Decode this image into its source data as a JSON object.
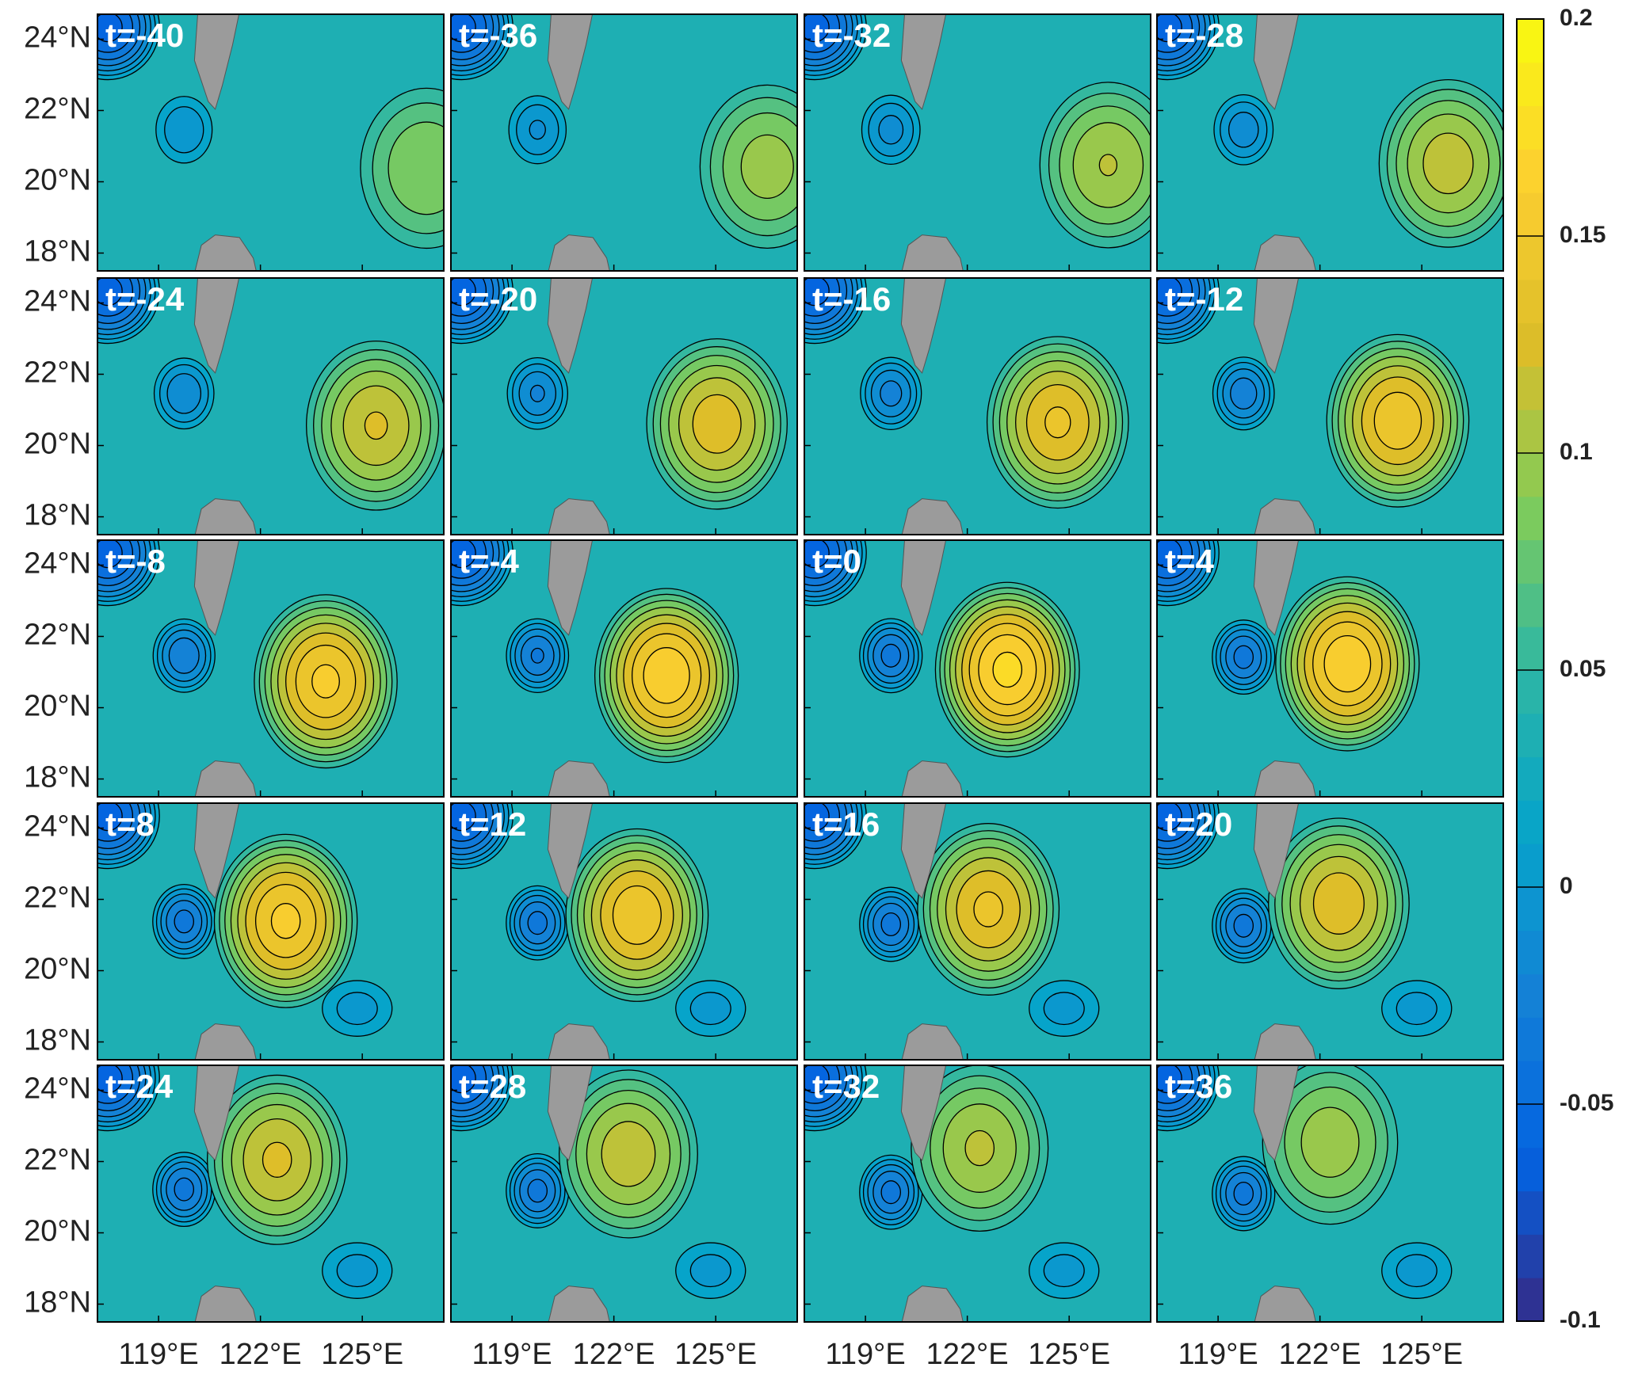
{
  "chart_data": {
    "type": "contour-map",
    "panels": [
      "t=-40",
      "t=-36",
      "t=-32",
      "t=-28",
      "t=-24",
      "t=-20",
      "t=-16",
      "t=-12",
      "t=-8",
      "t=-4",
      "t=0",
      "t=4",
      "t=8",
      "t=12",
      "t=16",
      "t=20",
      "t=24",
      "t=28",
      "t=32",
      "t=36"
    ],
    "xlim": [
      117.2,
      127.4
    ],
    "xticks": [
      {
        "value": 119,
        "label": "119°E"
      },
      {
        "value": 122,
        "label": "122°E"
      },
      {
        "value": 125,
        "label": "125°E"
      }
    ],
    "ylim": [
      17.5,
      24.7
    ],
    "yticks": [
      {
        "value": 18,
        "label": "18°N"
      },
      {
        "value": 20,
        "label": "20°N"
      },
      {
        "value": 22,
        "label": "22°N"
      },
      {
        "value": 24,
        "label": "24°N"
      }
    ],
    "colorbar": {
      "lim": [
        -0.1,
        0.2
      ],
      "ticks": [
        -0.1,
        -0.05,
        0,
        0.05,
        0.1,
        0.15,
        0.2
      ],
      "colormap": [
        "#352a87",
        "#0363e1",
        "#1481d6",
        "#06a4ca",
        "#2eb7a4",
        "#81cc59",
        "#dcbd29",
        "#fccf30",
        "#f9fb0e"
      ]
    }
  }
}
